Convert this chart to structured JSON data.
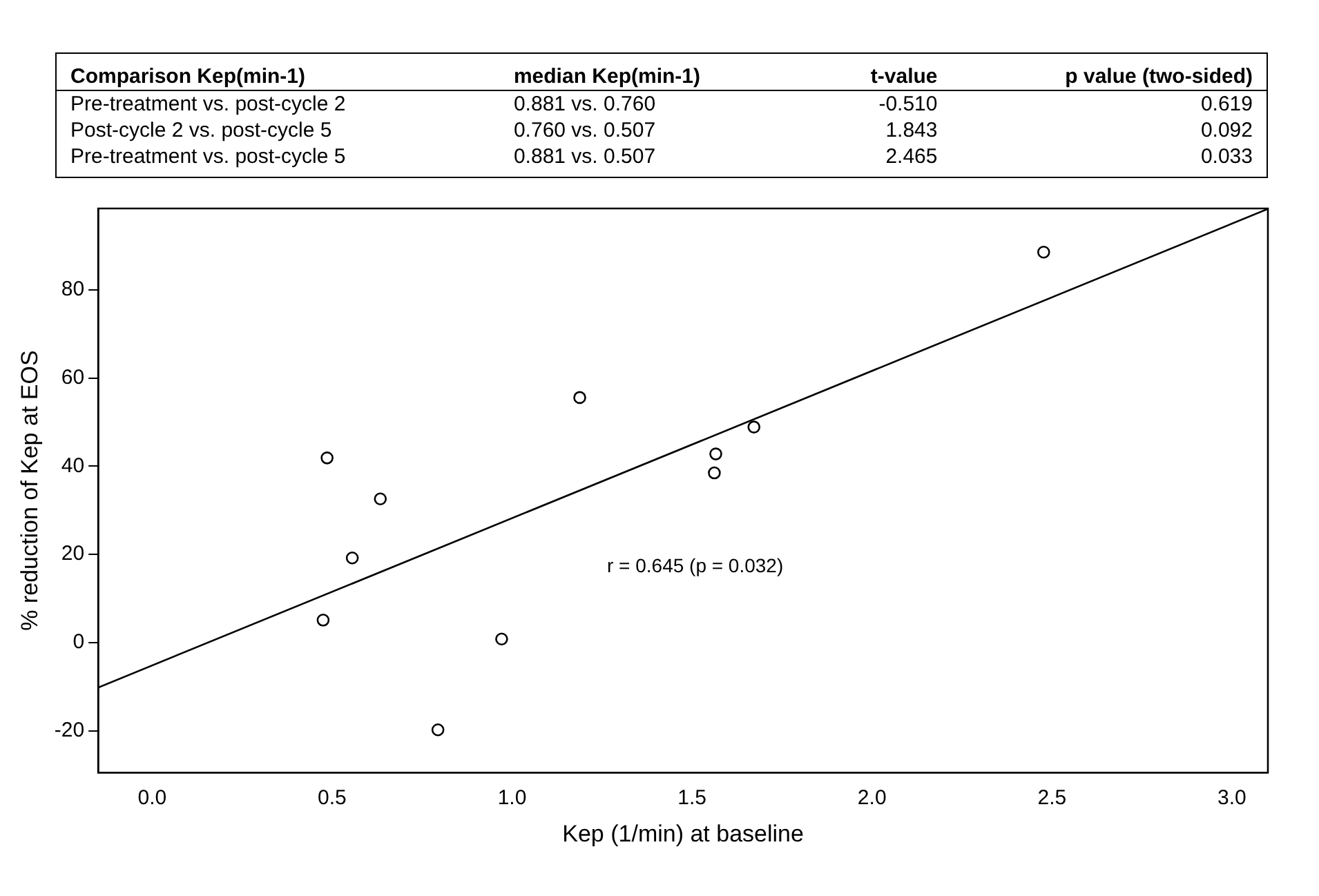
{
  "chart_data": {
    "type": "scatter",
    "xlabel": "Kep (1/min) at baseline",
    "ylabel": "% reduction of Kep at EOS",
    "xlim": [
      -0.15,
      3.1
    ],
    "ylim": [
      -29.5,
      98.5
    ],
    "xticks": [
      {
        "value": 0,
        "label": "0.0"
      },
      {
        "value": 0.5,
        "label": "0.5"
      },
      {
        "value": 1,
        "label": "1.0"
      },
      {
        "value": 1.5,
        "label": "1.5"
      },
      {
        "value": 2,
        "label": "2.0"
      },
      {
        "value": 2.5,
        "label": "2.5"
      },
      {
        "value": 3,
        "label": "3.0"
      }
    ],
    "yticks": [
      -20,
      0,
      20,
      40,
      60,
      80
    ],
    "grid": false,
    "legend": false,
    "marker": "circle",
    "series": [
      {
        "type": "scatter",
        "color": "#000000",
        "x": [
          0.475,
          0.486,
          0.556,
          0.634,
          0.794,
          0.971,
          1.188,
          1.562,
          1.566,
          1.672,
          2.477
        ],
        "values": [
          5.1,
          41.9,
          19.2,
          32.6,
          -19.8,
          0.8,
          55.6,
          38.5,
          42.8,
          48.9,
          88.6
        ]
      },
      {
        "type": "line",
        "color": "#000000",
        "marker": "none",
        "line_style": "solid",
        "x": [
          -0.15,
          3.1
        ],
        "values": [
          -10.2,
          98.4
        ]
      }
    ],
    "annotations": [
      "Comparison Kep(min-1)",
      "median Kep(min-1)",
      "t-value",
      "p value (two-sided)",
      "Pre-treatment vs. post-cycle 2",
      "0.881 vs. 0.760",
      "-0.510",
      "0.619",
      "Post-cycle 2 vs. post-cycle 5",
      "0.760 vs. 0.507",
      "1.843",
      "0.092",
      "Pre-treatment vs. post-cycle 5",
      "0.881 vs. 0.507",
      "2.465",
      "0.033",
      "r = 0.645 (p = 0.032)"
    ]
  }
}
